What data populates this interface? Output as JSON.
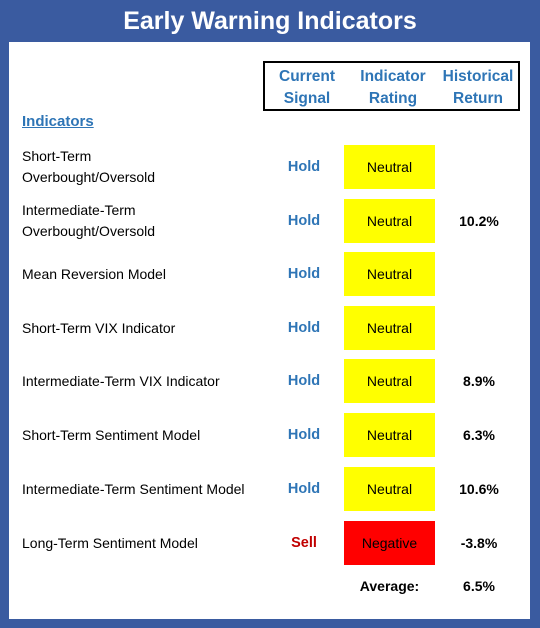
{
  "title": "Early Warning Indicators",
  "headers": {
    "signal": "Current\nSignal",
    "rating": "Indicator\nRating",
    "return": "Historical\nReturn"
  },
  "indicators_heading": "Indicators",
  "colors": {
    "frame": "#3a5ba0",
    "header_text": "#2e75b6",
    "hold": "#2e75b6",
    "sell": "#c00000",
    "neutral_fill": "#ffff00",
    "negative_fill": "#ff0000"
  },
  "rows": [
    {
      "name": "Short-Term\nOverbought/Oversold",
      "signal": "Hold",
      "rating": "Neutral",
      "return": ""
    },
    {
      "name": "Intermediate-Term\nOverbought/Oversold",
      "signal": "Hold",
      "rating": "Neutral",
      "return": "10.2%"
    },
    {
      "name": "Mean Reversion Model",
      "signal": "Hold",
      "rating": "Neutral",
      "return": ""
    },
    {
      "name": "Short-Term VIX Indicator",
      "signal": "Hold",
      "rating": "Neutral",
      "return": ""
    },
    {
      "name": "Intermediate-Term VIX Indicator",
      "signal": "Hold",
      "rating": "Neutral",
      "return": "8.9%"
    },
    {
      "name": "Short-Term Sentiment Model",
      "signal": "Hold",
      "rating": "Neutral",
      "return": "6.3%"
    },
    {
      "name": "Intermediate-Term Sentiment Model",
      "signal": "Hold",
      "rating": "Neutral",
      "return": "10.6%"
    },
    {
      "name": "Long-Term Sentiment Model",
      "signal": "Sell",
      "rating": "Negative",
      "return": "-3.8%"
    }
  ],
  "average": {
    "label": "Average:",
    "value": "6.5%"
  }
}
